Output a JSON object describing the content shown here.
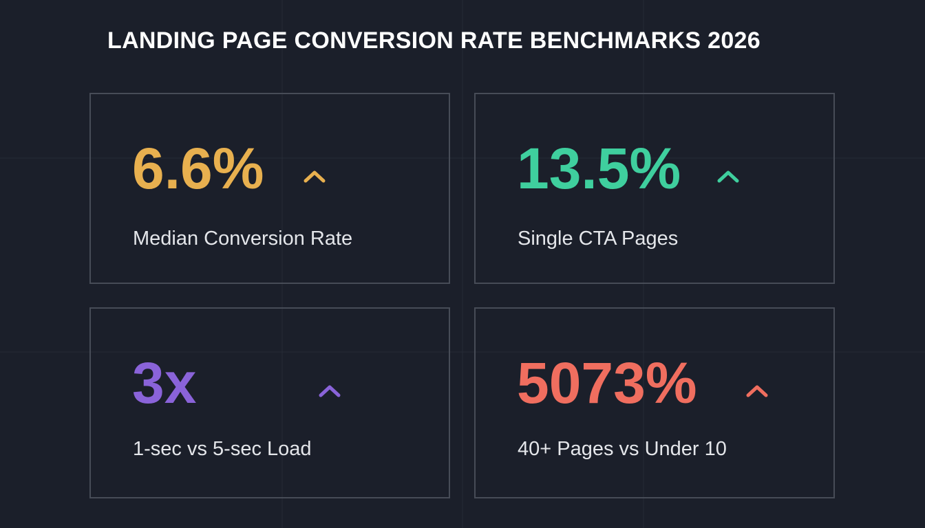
{
  "header": {
    "title": "LANDING PAGE CONVERSION RATE BENCHMARKS 2026"
  },
  "cards": [
    {
      "value": "6.6%",
      "label": "Median Conversion Rate"
    },
    {
      "value": "13.5%",
      "label": "Single CTA Pages"
    },
    {
      "value": "3x",
      "label": "1-sec vs 5-sec Load"
    },
    {
      "value": "5073%",
      "label": "40+ Pages vs Under 10"
    }
  ]
}
